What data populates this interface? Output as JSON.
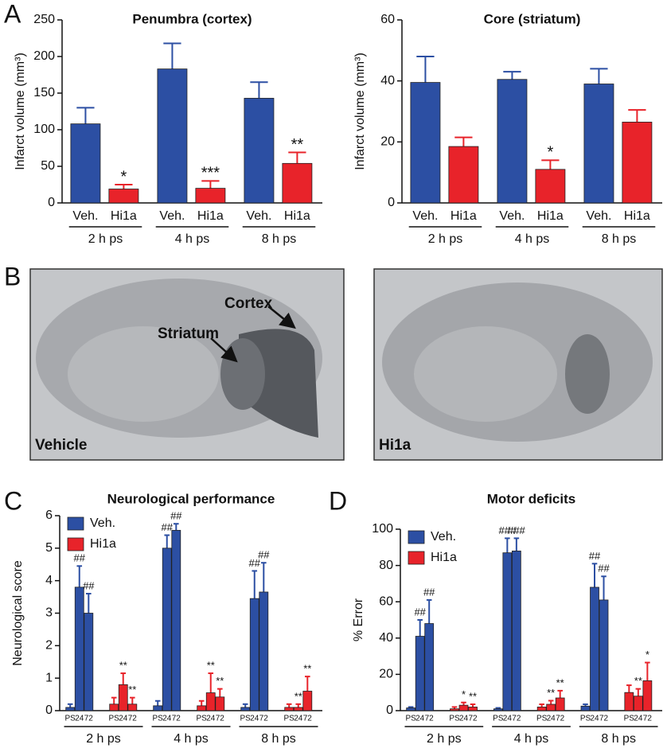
{
  "panel_labels": [
    "A",
    "B",
    "C",
    "D"
  ],
  "images": {
    "left": {
      "caption": "Vehicle",
      "annotations": [
        "Cortex",
        "Striatum"
      ]
    },
    "right": {
      "caption": "Hi1a"
    }
  },
  "chart_data": [
    {
      "type": "bar",
      "title": "Penumbra (cortex)",
      "ylabel": "Infarct volume (mm³)",
      "ylim": [
        0,
        250
      ],
      "yticks": [
        0,
        50,
        100,
        150,
        200,
        250
      ],
      "groups": [
        "2 h ps",
        "4 h ps",
        "8 h ps"
      ],
      "series": [
        {
          "name": "Veh.",
          "color": "#2c4fa3",
          "values": [
            108,
            183,
            143
          ],
          "errors": [
            22,
            35,
            22
          ],
          "annotations": [
            null,
            null,
            null
          ]
        },
        {
          "name": "Hi1a",
          "color": "#e8232a",
          "values": [
            19,
            20,
            54
          ],
          "errors": [
            6,
            10,
            15
          ],
          "annotations": [
            "*",
            "***",
            "**"
          ]
        }
      ]
    },
    {
      "type": "bar",
      "title": "Core (striatum)",
      "ylabel": "Infarct volume (mm³)",
      "ylim": [
        0,
        60
      ],
      "yticks": [
        0,
        20,
        40,
        60
      ],
      "groups": [
        "2 h ps",
        "4 h ps",
        "8 h ps"
      ],
      "series": [
        {
          "name": "Veh.",
          "color": "#2c4fa3",
          "values": [
            39.5,
            40.5,
            39
          ],
          "errors": [
            8.5,
            2.5,
            5
          ],
          "annotations": [
            null,
            null,
            null
          ]
        },
        {
          "name": "Hi1a",
          "color": "#e8232a",
          "values": [
            18.5,
            11,
            26.5
          ],
          "errors": [
            3,
            3,
            4
          ],
          "annotations": [
            null,
            "*",
            null
          ]
        }
      ]
    },
    {
      "type": "grouped-bar",
      "title": "Neurological performance",
      "ylabel": "Neurological score",
      "ylim": [
        0,
        6
      ],
      "yticks": [
        0,
        1,
        2,
        3,
        4,
        5,
        6
      ],
      "legend": "upper left",
      "groups": [
        "2 h ps",
        "4 h ps",
        "8 h ps"
      ],
      "timepoints": [
        "PS",
        "24",
        "72"
      ],
      "series": [
        {
          "name": "Veh.",
          "color": "#2c4fa3",
          "values": [
            0.1,
            3.8,
            3.0,
            0.15,
            5.0,
            5.55,
            0.1,
            3.45,
            3.65
          ],
          "errors": [
            0.1,
            0.65,
            0.6,
            0.15,
            0.4,
            0.2,
            0.1,
            0.85,
            0.9
          ],
          "annotations": [
            null,
            "##",
            "##",
            null,
            "##",
            "##",
            null,
            "##",
            "##"
          ]
        },
        {
          "name": "Hi1a",
          "color": "#e8232a",
          "values": [
            0.2,
            0.8,
            0.2,
            0.15,
            0.55,
            0.42,
            0.1,
            0.1,
            0.6
          ],
          "errors": [
            0.2,
            0.35,
            0.2,
            0.15,
            0.6,
            0.25,
            0.1,
            0.1,
            0.45
          ],
          "annotations": [
            null,
            "**",
            "**",
            null,
            "**",
            "**",
            null,
            "**",
            "**"
          ]
        }
      ]
    },
    {
      "type": "grouped-bar",
      "title": "Motor deficits",
      "ylabel": "% Error",
      "ylim": [
        0,
        100
      ],
      "yticks": [
        0,
        20,
        40,
        60,
        80,
        100
      ],
      "legend": "upper left",
      "groups": [
        "2 h ps",
        "4 h ps",
        "8 h ps"
      ],
      "timepoints": [
        "PS",
        "24",
        "72"
      ],
      "series": [
        {
          "name": "Veh.",
          "color": "#2c4fa3",
          "values": [
            1.5,
            41,
            48,
            1,
            87,
            88,
            2.5,
            68,
            61
          ],
          "errors": [
            0.5,
            9,
            13,
            0.5,
            8,
            7,
            1,
            13,
            13
          ],
          "annotations": [
            null,
            "##",
            "##",
            null,
            "###",
            "###",
            null,
            "##",
            "##"
          ]
        },
        {
          "name": "Hi1a",
          "color": "#e8232a",
          "values": [
            1,
            3,
            2,
            2,
            3.5,
            7,
            10,
            8,
            16.5
          ],
          "errors": [
            1,
            1.5,
            1.5,
            1.5,
            2,
            4,
            4,
            4,
            10
          ],
          "annotations": [
            null,
            "*",
            "**",
            null,
            "**",
            "**",
            null,
            "**",
            "*"
          ]
        }
      ]
    }
  ]
}
